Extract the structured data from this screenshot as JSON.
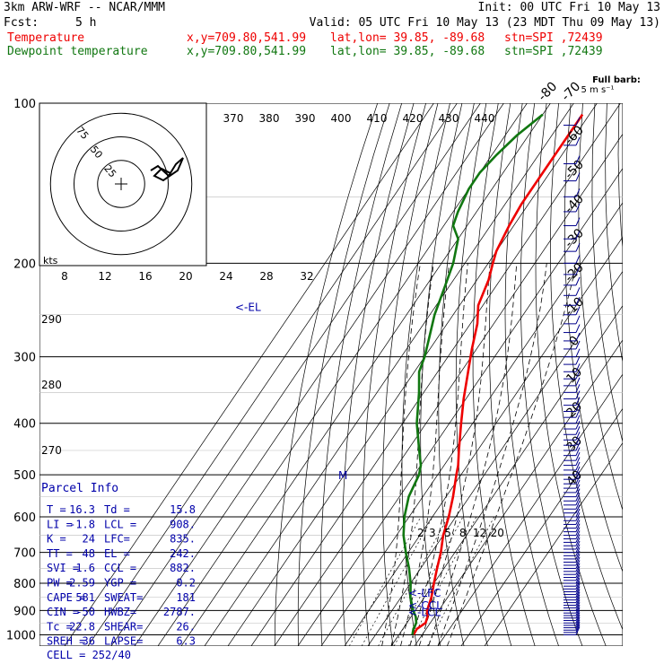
{
  "header": {
    "model": "3km ARW-WRF -- NCAR/MMM",
    "init": "Init: 00 UTC Fri 10 May 13",
    "fcst_label": "Fcst:",
    "fcst_value": "5 h",
    "valid": "Valid: 05 UTC Fri 10 May 13 (23 MDT Thu 09 May 13)",
    "temp_label": "Temperature",
    "dew_label": "Dewpoint temperature",
    "xy": "x,y=709.80,541.99",
    "latlon": "lat,lon= 39.85, -89.68",
    "stn": "stn=SPI ,72439",
    "barb_title": "Full barb:",
    "barb_units": "5 m s⁻¹"
  },
  "colors": {
    "temperature": "#ee0000",
    "dewpoint": "#117711",
    "info": "#0000aa"
  },
  "chart_data": {
    "type": "line",
    "title": "",
    "ylabel": "",
    "pressure_levels": [
      100,
      200,
      300,
      400,
      500,
      600,
      700,
      800,
      900,
      1000
    ],
    "pressure_labels": [
      "100",
      "200",
      "300",
      "400",
      "500",
      "600",
      "700",
      "800",
      "900",
      "1000"
    ],
    "series": [
      {
        "name": "Temperature",
        "values": [
          [
            105,
            -63
          ],
          [
            130,
            -63
          ],
          [
            155,
            -63
          ],
          [
            170,
            -62
          ],
          [
            190,
            -60
          ],
          [
            200,
            -58
          ],
          [
            215,
            -55
          ],
          [
            240,
            -52
          ],
          [
            260,
            -47
          ],
          [
            290,
            -42
          ],
          [
            320,
            -37
          ],
          [
            360,
            -31
          ],
          [
            400,
            -25
          ],
          [
            450,
            -18
          ],
          [
            480,
            -14
          ],
          [
            500,
            -12
          ],
          [
            550,
            -7
          ],
          [
            600,
            -3
          ],
          [
            650,
            0
          ],
          [
            700,
            4
          ],
          [
            750,
            7
          ],
          [
            800,
            10
          ],
          [
            850,
            13
          ],
          [
            900,
            15
          ],
          [
            925,
            17
          ],
          [
            950,
            18
          ],
          [
            975,
            16
          ],
          [
            1000,
            16.3
          ]
        ]
      },
      {
        "name": "Dewpoint temperature",
        "values": [
          [
            105,
            -80
          ],
          [
            115,
            -85
          ],
          [
            125,
            -88
          ],
          [
            135,
            -90
          ],
          [
            145,
            -90
          ],
          [
            160,
            -88
          ],
          [
            170,
            -86
          ],
          [
            180,
            -80
          ],
          [
            200,
            -75
          ],
          [
            220,
            -72
          ],
          [
            250,
            -68
          ],
          [
            280,
            -63
          ],
          [
            300,
            -60
          ],
          [
            320,
            -58
          ],
          [
            350,
            -52
          ],
          [
            400,
            -44
          ],
          [
            450,
            -35
          ],
          [
            480,
            -30
          ],
          [
            500,
            -28
          ],
          [
            550,
            -26
          ],
          [
            600,
            -22
          ],
          [
            650,
            -17
          ],
          [
            700,
            -11
          ],
          [
            750,
            -5
          ],
          [
            800,
            0
          ],
          [
            850,
            4
          ],
          [
            900,
            9
          ],
          [
            925,
            12
          ],
          [
            950,
            14
          ],
          [
            975,
            14.5
          ],
          [
            1000,
            15.8
          ]
        ]
      }
    ],
    "temperature_labels": [
      "-80",
      "-70",
      "-60",
      "-50",
      "-40",
      "-30",
      "-20",
      "-10",
      "0",
      "10",
      "20",
      "30",
      "40"
    ],
    "theta_labels": [
      "370",
      "380",
      "390",
      "400",
      "410",
      "420",
      "430",
      "440"
    ],
    "theta_labels_left": [
      "290",
      "280",
      "270"
    ],
    "mixing_ratio_labels": [
      "2",
      "3",
      "5",
      "8",
      "12",
      "20"
    ],
    "hodograph_speed_labels": [
      "8",
      "12",
      "16",
      "20",
      "24",
      "28",
      "32"
    ],
    "hodograph_rings": [
      "75",
      "50",
      "25"
    ],
    "hodograph_units": "kts",
    "levels_markers": [
      {
        "label": "<-EL",
        "p": 242
      },
      {
        "label": "<-LFC",
        "p": 835
      },
      {
        "label": "<-CCL",
        "p": 882
      },
      {
        "label": "<-LCL",
        "p": 908
      }
    ],
    "wind_marker": "M",
    "legend": "top-left"
  },
  "parcel_info": {
    "title": "Parcel Info",
    "rows": [
      [
        "T  =",
        "16.3",
        "Td =",
        "15.8"
      ],
      [
        "LI =",
        "-1.8",
        "LCL =",
        "908."
      ],
      [
        "K  =",
        "24",
        "LFC=",
        "835."
      ],
      [
        "TT =",
        "48",
        "EL =",
        "242."
      ],
      [
        "SVI =",
        "1.6",
        "CCL =",
        "882."
      ],
      [
        "PW =",
        "2.59",
        "YGP =",
        "0.2"
      ],
      [
        "CAPE =",
        "581",
        "SWEAT=",
        "181"
      ],
      [
        "CIN =",
        "-50",
        "HWBZ=",
        "2787."
      ],
      [
        "Tc =",
        "22.8",
        "SHEAR=",
        "26."
      ],
      [
        "SREH =",
        "36",
        "LAPSE=",
        "6.3"
      ]
    ],
    "cell": "CELL = 252/40"
  }
}
